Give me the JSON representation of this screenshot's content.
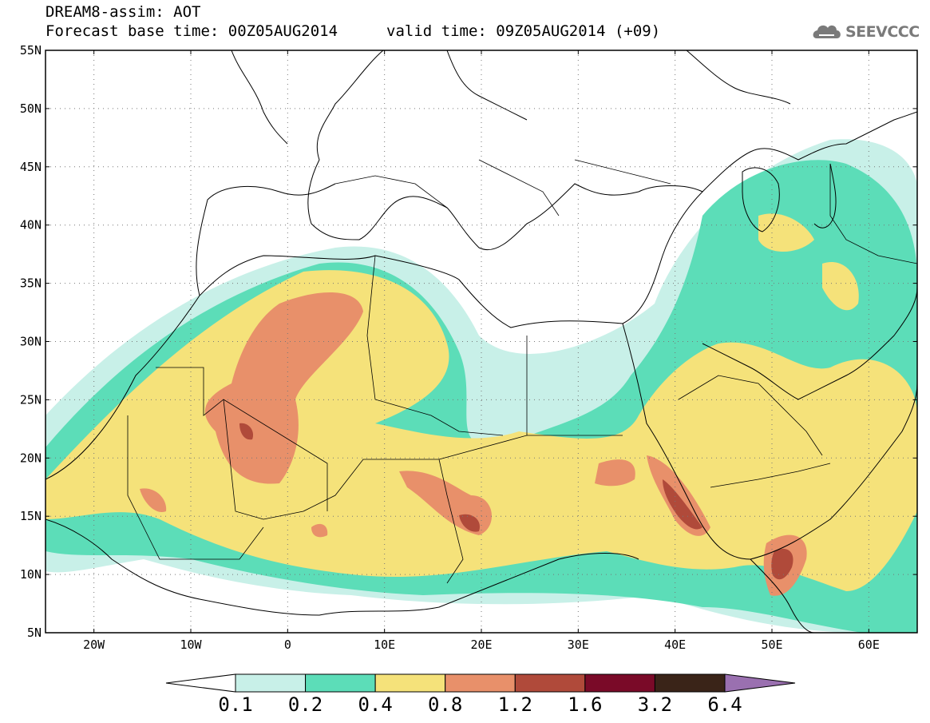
{
  "header": {
    "title": "DREAM8-assim: AOT",
    "base_time": "Forecast base time: 00Z05AUG2014",
    "valid_time": "valid time: 09Z05AUG2014 (+09)",
    "logo_text": "SEEVCCC",
    "logo_icon": "cloud-icon"
  },
  "map": {
    "lon_range": [
      -25,
      65
    ],
    "lat_range": [
      5,
      55
    ],
    "lat_labels": [
      "55N",
      "50N",
      "45N",
      "40N",
      "35N",
      "30N",
      "25N",
      "20N",
      "15N",
      "10N",
      "5N"
    ],
    "lat_values": [
      55,
      50,
      45,
      40,
      35,
      30,
      25,
      20,
      15,
      10,
      5
    ],
    "lon_labels": [
      "20W",
      "10W",
      "0",
      "10E",
      "20E",
      "30E",
      "40E",
      "50E",
      "60E"
    ],
    "lon_values": [
      -20,
      -10,
      0,
      10,
      20,
      30,
      40,
      50,
      60
    ]
  },
  "colorbar": {
    "levels": [
      "0.1",
      "0.2",
      "0.4",
      "0.8",
      "1.2",
      "1.6",
      "3.2",
      "6.4"
    ],
    "colors": [
      "#ffffff",
      "#c8f0e8",
      "#5cddb8",
      "#f5e27a",
      "#e8906a",
      "#b04a3a",
      "#7a0a28",
      "#3a2418",
      "#9a70b0"
    ]
  }
}
